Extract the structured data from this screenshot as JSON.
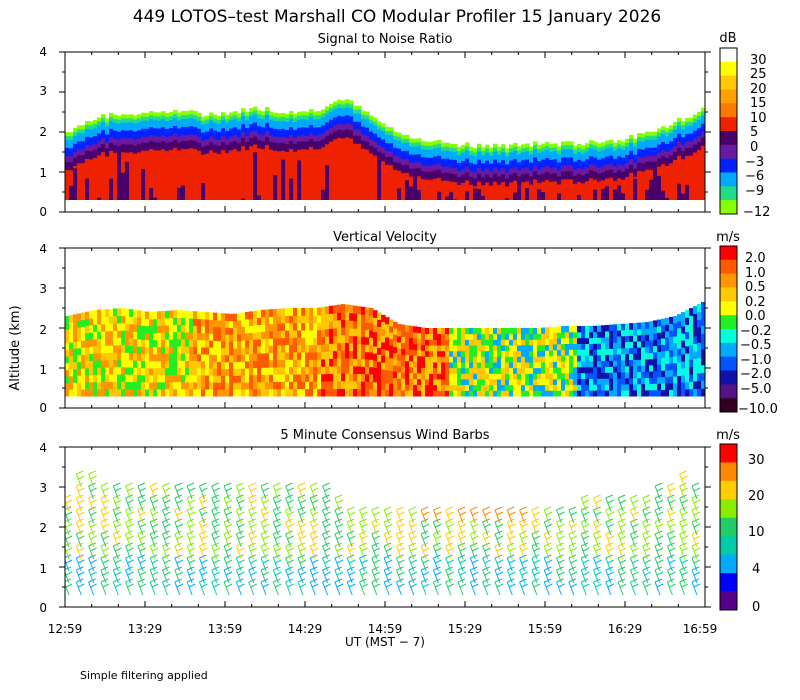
{
  "title": "449 LOTOS–test Marshall CO Modular Profiler 15 January 2026",
  "shared_ylabel": "Altitude (km)",
  "footer_note": "Simple filtering applied",
  "chart_data": [
    {
      "type": "heatmap",
      "title": "Signal to Noise Ratio",
      "units": "dB",
      "ylim": [
        0,
        4
      ],
      "yticks": [
        "0",
        "1",
        "2",
        "3",
        "4"
      ],
      "colorbar": {
        "labels": [
          "30",
          "25",
          "20",
          "15",
          "10",
          "5",
          "0",
          "−3",
          "−6",
          "−9",
          "−12"
        ],
        "colors": [
          "#ffffff",
          "#ffff00",
          "#ffc800",
          "#ffa000",
          "#ff7800",
          "#ee2200",
          "#4a006a",
          "#6a1aa0",
          "#0022ff",
          "#00aaff",
          "#22dd88",
          "#88ff00"
        ]
      },
      "top_km": [
        2.0,
        2.35,
        2.45,
        2.5,
        2.5,
        2.45,
        2.5,
        2.6,
        2.5,
        2.55,
        2.85,
        2.4,
        1.95,
        1.8,
        1.7,
        1.65,
        1.65,
        1.7,
        1.7,
        1.75,
        1.8,
        1.95,
        2.25,
        2.55
      ],
      "layers": [
        {
          "depth": 0.0,
          "color": "#88ff00"
        },
        {
          "depth": 0.1,
          "color": "#22dd88"
        },
        {
          "depth": 0.2,
          "color": "#00aaff"
        },
        {
          "depth": 0.4,
          "color": "#0022ff"
        },
        {
          "depth": 0.6,
          "color": "#6a1aa0"
        },
        {
          "depth": 0.75,
          "color": "#4a006a"
        },
        {
          "depth": 0.95,
          "color": "#ee2200"
        }
      ]
    },
    {
      "type": "heatmap",
      "title": "Vertical Velocity",
      "units": "m/s",
      "ylim": [
        0,
        4
      ],
      "yticks": [
        "0",
        "1",
        "2",
        "3",
        "4"
      ],
      "colorbar": {
        "labels": [
          "2.0",
          "1.0",
          "0.5",
          "0.2",
          "0.0",
          "−0.2",
          "−0.5",
          "−1.0",
          "−2.0",
          "−5.0",
          "−10.0"
        ],
        "colors": [
          "#ff0000",
          "#ff5a00",
          "#ff9600",
          "#ffc800",
          "#ffff00",
          "#22ee22",
          "#00ffdd",
          "#00aaff",
          "#0055ff",
          "#1111aa",
          "#551188",
          "#330022"
        ]
      },
      "top_km": [
        2.3,
        2.45,
        2.5,
        2.4,
        2.45,
        2.4,
        2.35,
        2.45,
        2.5,
        2.5,
        2.6,
        2.5,
        2.1,
        2.0,
        2.0,
        2.0,
        2.0,
        2.0,
        2.05,
        2.05,
        2.1,
        2.15,
        2.3,
        2.65
      ],
      "column_palette": [
        [
          "#ffff00",
          "#ffc800",
          "#ff9600",
          "#22ee22"
        ],
        [
          "#ffc800",
          "#ff9600",
          "#ffff00",
          "#ff5a00"
        ],
        [
          "#ff9600",
          "#ff5a00",
          "#ffc800",
          "#ff0000"
        ],
        [
          "#ffc800",
          "#00aaff",
          "#ffff00",
          "#22ee22"
        ],
        [
          "#00aaff",
          "#0055ff",
          "#00ffdd",
          "#1111aa"
        ]
      ]
    },
    {
      "type": "scatter",
      "title": "5 Minute Consensus Wind Barbs",
      "units": "m/s",
      "ylim": [
        0,
        4
      ],
      "yticks": [
        "0",
        "1",
        "2",
        "3",
        "4"
      ],
      "colorbar": {
        "labels": [
          "30",
          "20",
          "10",
          "4",
          "0"
        ],
        "colors": [
          "#ff0000",
          "#ff8800",
          "#ffcc00",
          "#88ee00",
          "#22cc66",
          "#00ccaa",
          "#00aaff",
          "#0000ff",
          "#550088"
        ]
      },
      "columns": 52,
      "levels_km": [
        0.3,
        0.6,
        0.9,
        1.2,
        1.5,
        1.8,
        2.1,
        2.4,
        2.7,
        3.0
      ],
      "top_km": [
        2.6,
        3.0,
        3.0,
        2.9,
        2.9,
        2.9,
        2.9,
        2.9,
        2.9,
        2.9,
        2.9,
        2.9,
        2.9,
        2.9,
        2.7,
        2.7,
        2.7,
        2.7,
        2.7,
        2.7,
        2.7,
        2.7,
        2.4,
        2.3,
        2.3,
        2.2,
        2.3,
        2.3,
        2.2,
        2.2,
        2.2,
        2.2,
        2.2,
        2.2,
        2.2,
        2.2,
        2.2,
        2.2,
        2.2,
        2.2,
        2.3,
        2.3,
        2.4,
        2.4,
        2.4,
        2.5,
        2.5,
        2.6,
        2.7,
        2.9,
        3.0,
        2.8
      ]
    }
  ],
  "x_axis": {
    "ticks": [
      "12:59",
      "13:29",
      "13:59",
      "14:29",
      "14:59",
      "15:29",
      "15:59",
      "16:29",
      "16:59"
    ],
    "label": "UT  (MST − 7)"
  }
}
